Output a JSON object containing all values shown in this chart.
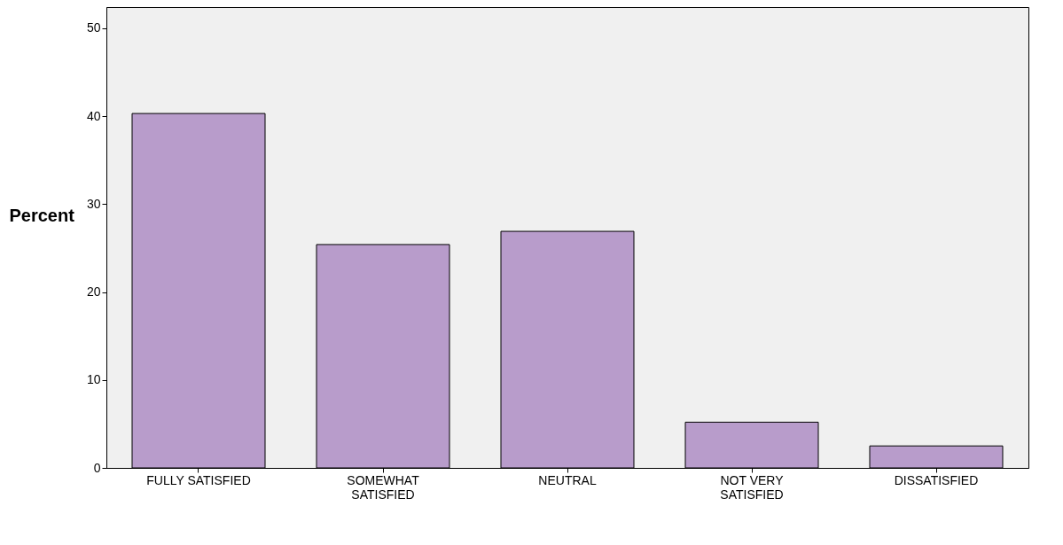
{
  "chart_data": {
    "type": "bar",
    "ylabel": "Percent",
    "categories": [
      "FULLY SATISFIED",
      "SOMEWHAT\nSATISFIED",
      "NEUTRAL",
      "NOT VERY\nSATISFIED",
      "DISSATISFIED"
    ],
    "values": [
      40.3,
      25.4,
      26.9,
      5.2,
      2.5
    ],
    "color": "#b89ccb",
    "ylim": [
      0,
      52.4
    ],
    "yticks": [
      0,
      10,
      20,
      30,
      40,
      50
    ],
    "grid": false
  }
}
